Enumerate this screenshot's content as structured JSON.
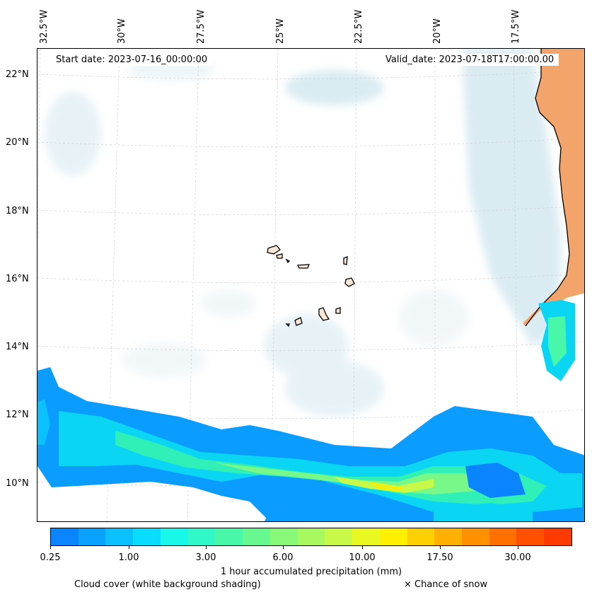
{
  "map": {
    "start_date": "Start date: 2023-07-16_00:00:00",
    "valid_date": "Valid_date: 2023-07-18T17:00:00.00",
    "lon_labels": [
      "32.5°W",
      "30°W",
      "27.5°W",
      "25°W",
      "22.5°W",
      "20°W",
      "17.5°W"
    ],
    "lat_labels": [
      "22°N",
      "20°N",
      "18°N",
      "16°N",
      "14°N",
      "12°N",
      "10°N"
    ],
    "colors": {
      "land": "#f3a46b",
      "cloud": "#bcdce8",
      "coastline": "#000000",
      "grid": "#cfcfcf"
    }
  },
  "colorbar": {
    "tick_labels": [
      "0.25",
      "1.00",
      "3.00",
      "6.00",
      "10.00",
      "17.50",
      "30.00"
    ],
    "colors": [
      "#0a84ff",
      "#0aa2ff",
      "#0ac0ff",
      "#0adcff",
      "#18f8e8",
      "#30f8c8",
      "#48f8a8",
      "#68f890",
      "#88f878",
      "#a8f860",
      "#c8f848",
      "#e8f820",
      "#fff000",
      "#ffd000",
      "#ffb000",
      "#ff9000",
      "#ff7000",
      "#ff5000",
      "#ff3a00"
    ],
    "label": "1 hour accumulated precipitation (mm)"
  },
  "footer": {
    "cloud_note": "Cloud cover (white background shading)",
    "snow_note": "× Chance of snow"
  }
}
